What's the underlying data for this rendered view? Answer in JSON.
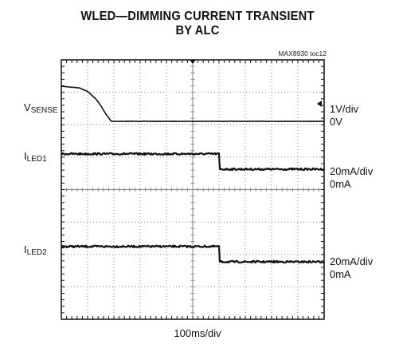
{
  "header": {
    "title_line1": "WLED—DIMMING CURRENT TRANSIENT",
    "title_line2": "BY ALC",
    "ref_code": "MAX8930 toc12"
  },
  "channels": [
    {
      "name": "V",
      "sub": "SENSE",
      "scale": "1V/div",
      "zero": "0V"
    },
    {
      "name": "I",
      "sub": "LED1",
      "scale": "20mA/div",
      "zero": "0mA"
    },
    {
      "name": "I",
      "sub": "LED2",
      "scale": "20mA/div",
      "zero": "0mA"
    }
  ],
  "timebase": "100ms/div",
  "chart_data": {
    "type": "line",
    "grid": true,
    "x_divisions": 10,
    "y_divisions": 8,
    "xlabel": "100ms/div",
    "xlim": [
      0,
      1000
    ],
    "series": [
      {
        "name": "VSENSE",
        "x": [
          0,
          70,
          100,
          130,
          150,
          170,
          190,
          1000
        ],
        "y": [
          2.0,
          1.9,
          1.7,
          1.3,
          0.9,
          0.4,
          0.0,
          0.0
        ]
      },
      {
        "name": "ILED1",
        "x": [
          0,
          600,
          601,
          1000
        ],
        "y": [
          24,
          24,
          0,
          0
        ]
      },
      {
        "name": "ILED2",
        "x": [
          0,
          600,
          601,
          1000
        ],
        "y": [
          24,
          24,
          0,
          0
        ]
      }
    ]
  },
  "colors": {
    "trace": "#111111",
    "grid": "#888888",
    "frame": "#111111"
  }
}
